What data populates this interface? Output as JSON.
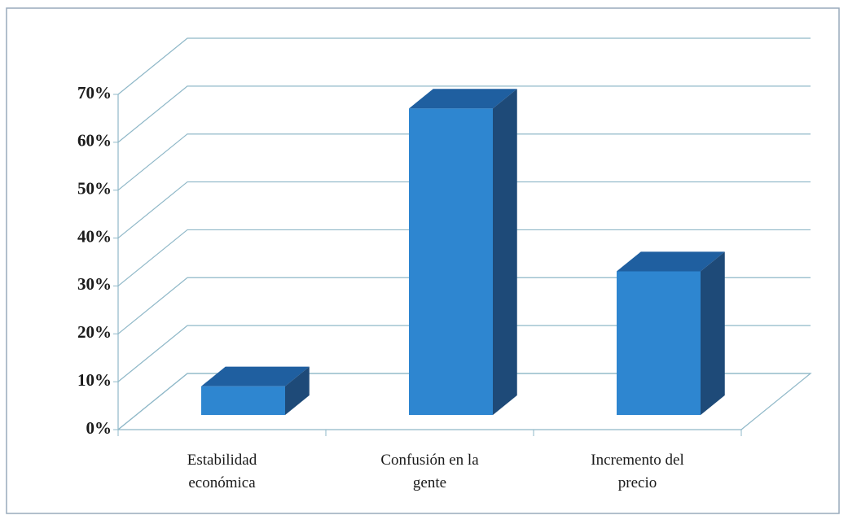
{
  "chart_data": {
    "type": "bar3d",
    "categories": [
      "Estabilidad económica",
      "Confusión en la gente",
      "Incremento del precio"
    ],
    "values": [
      6,
      64,
      30
    ],
    "color": "#2e86d0",
    "ylim": [
      0,
      70
    ],
    "yticks": [
      {
        "value": 0,
        "label": "0%"
      },
      {
        "value": 10,
        "label": "10%"
      },
      {
        "value": 20,
        "label": "20%"
      },
      {
        "value": 30,
        "label": "30%"
      },
      {
        "value": 40,
        "label": "40%"
      },
      {
        "value": 50,
        "label": "50%"
      },
      {
        "value": 60,
        "label": "60%"
      },
      {
        "value": 70,
        "label": "70%"
      }
    ],
    "grid": true
  }
}
